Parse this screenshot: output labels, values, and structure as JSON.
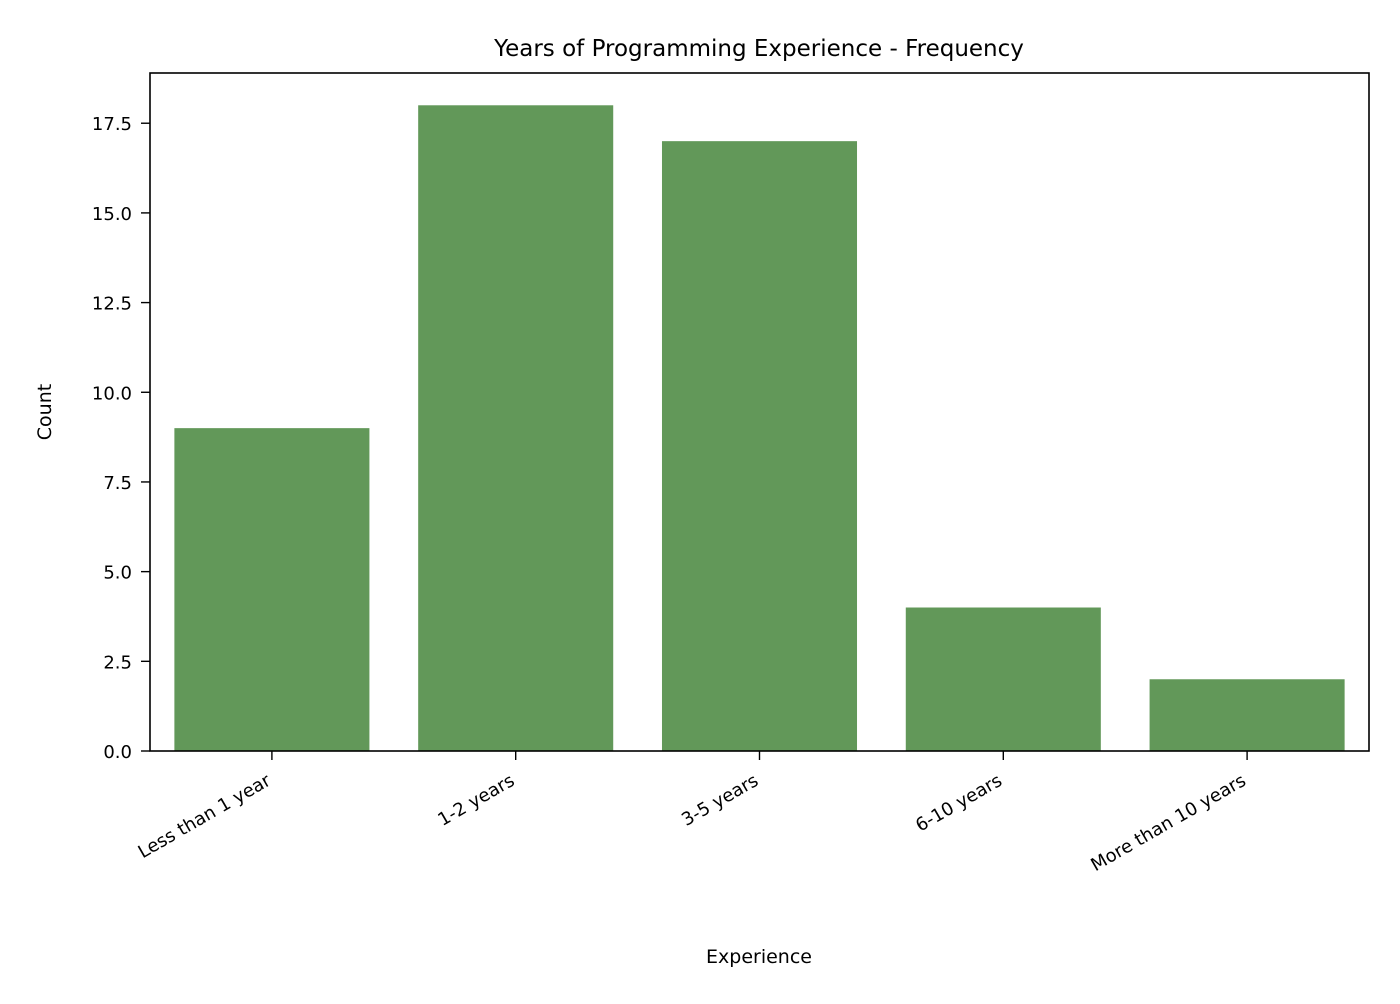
{
  "chart_data": {
    "type": "bar",
    "title": "Years of Programming Experience - Frequency",
    "xlabel": "Experience",
    "ylabel": "Count",
    "categories": [
      "Less than 1 year",
      "1-2 years",
      "3-5 years",
      "6-10 years",
      "More than 10 years"
    ],
    "values": [
      9,
      18,
      17,
      4,
      2
    ],
    "ylim": [
      0,
      18.9
    ],
    "yticks": [
      "0.0",
      "2.5",
      "5.0",
      "7.5",
      "10.0",
      "12.5",
      "15.0",
      "17.5"
    ],
    "grid": false,
    "legend": "none",
    "bar_color": "#629859",
    "axis_color": "#000000"
  }
}
